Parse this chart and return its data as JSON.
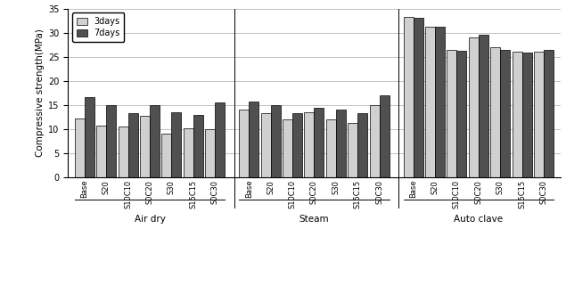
{
  "groups": [
    "Air dry",
    "Steam",
    "Auto clave"
  ],
  "categories": [
    "Base",
    "S20",
    "S10C10",
    "S0C20",
    "S30",
    "S15C15",
    "S0C30"
  ],
  "values_3days": {
    "Air dry": [
      12.2,
      10.7,
      10.5,
      12.7,
      9.0,
      10.2,
      10.0
    ],
    "Steam": [
      14.0,
      13.3,
      12.1,
      13.5,
      12.0,
      11.2,
      15.0
    ],
    "Auto clave": [
      33.3,
      31.3,
      26.5,
      29.0,
      27.0,
      26.0,
      26.0
    ]
  },
  "values_7days": {
    "Air dry": [
      16.7,
      14.9,
      13.3,
      15.0,
      13.5,
      13.0,
      15.5
    ],
    "Steam": [
      15.8,
      15.0,
      13.3,
      14.5,
      14.0,
      13.3,
      17.0
    ],
    "Auto clave": [
      33.0,
      31.3,
      26.2,
      29.5,
      26.5,
      25.8,
      26.5
    ]
  },
  "color_3days": "#d0d0d0",
  "color_7days": "#505050",
  "ylabel": "Compressive strength(MPa)",
  "ylim": [
    0,
    35
  ],
  "yticks": [
    0,
    5,
    10,
    15,
    20,
    25,
    30,
    35
  ],
  "legend_3days": "3days",
  "legend_7days": "7days",
  "background_color": "#ffffff",
  "edge_color": "#000000"
}
